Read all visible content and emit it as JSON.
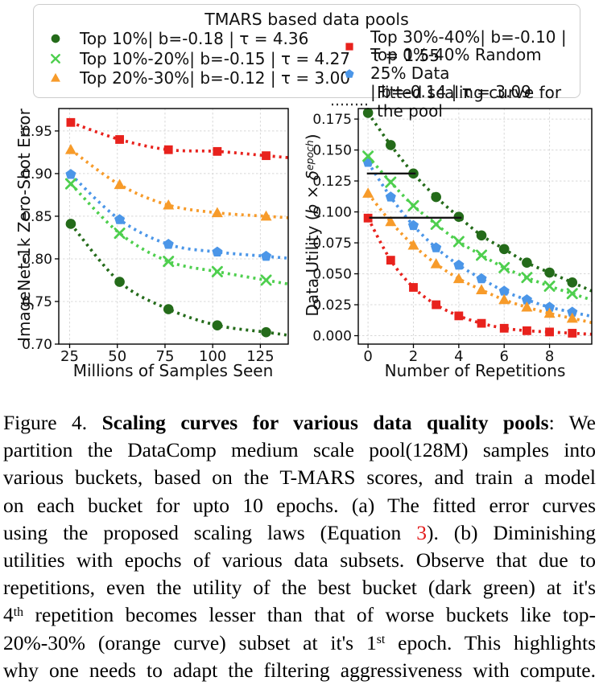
{
  "colors": {
    "dark_green": "#246b1a",
    "light_green": "#4ecf4e",
    "orange": "#f79b2a",
    "red": "#e8221d",
    "blue": "#4b96e8",
    "annotation_black": "#151515",
    "equation_link_red": "#e31b1b"
  },
  "legend": {
    "title": "TMARS based data pools",
    "items": [
      {
        "label": "Top 10%| b=-0.18 | τ = 4.36",
        "marker": "circle",
        "color": "#246b1a"
      },
      {
        "label": "Top 10%-20%| b=-0.15 | τ = 4.27",
        "marker": "x",
        "color": "#4ecf4e"
      },
      {
        "label": "Top 20%-30%| b=-0.12 | τ = 3.00",
        "marker": "triangle",
        "color": "#f79b2a"
      },
      {
        "label": "Top 30%-40%| b=-0.10 | τ = 1.55",
        "marker": "square",
        "color": "#e8221d"
      },
      {
        "label": "Top 0%-40% Random 25% Data\n| b=-0.14 | τ = 3.09",
        "marker": "pentagon",
        "color": "#4b96e8"
      },
      {
        "label": "Fitted scaling curve for the pool",
        "marker": "dotted-line",
        "color": "#333333"
      }
    ]
  },
  "chart_data": [
    {
      "panel": "a",
      "type": "scatter",
      "title": "",
      "xlabel": "Millions of Samples Seen",
      "ylabel": "ImageNet-1k Zero-Shot Error",
      "ylabel_rich": [
        {
          "t": "ImageNet-1k Zero-Shot Error"
        }
      ],
      "xlim": [
        19.3,
        139.6
      ],
      "ylim": [
        0.7,
        0.9763
      ],
      "xticks": [
        25,
        50,
        75,
        100,
        125
      ],
      "yticks": [
        0.7,
        0.75,
        0.8,
        0.85,
        0.9,
        0.95
      ],
      "ytick_decimals": 2,
      "grid": true,
      "x": [
        25.6,
        51.2,
        76.8,
        102.4,
        128
      ],
      "series": [
        {
          "name": "Top 10%",
          "marker": "circle",
          "color": "#246b1a",
          "values": [
            0.841,
            0.773,
            0.741,
            0.722,
            0.714
          ]
        },
        {
          "name": "Top 10%-20%",
          "marker": "x",
          "color": "#4ecf4e",
          "values": [
            0.888,
            0.83,
            0.797,
            0.785,
            0.775
          ]
        },
        {
          "name": "Top 20%-30%",
          "marker": "triangle",
          "color": "#f79b2a",
          "values": [
            0.928,
            0.887,
            0.863,
            0.854,
            0.85
          ]
        },
        {
          "name": "Top 30%-40%",
          "marker": "square",
          "color": "#e8221d",
          "values": [
            0.96,
            0.94,
            0.928,
            0.926,
            0.921
          ]
        },
        {
          "name": "Top 0%-40% Random 25% Data",
          "marker": "pentagon",
          "color": "#4b96e8",
          "values": [
            0.899,
            0.846,
            0.817,
            0.808,
            0.803
          ]
        }
      ]
    },
    {
      "panel": "b",
      "type": "scatter",
      "title": "",
      "xlabel": "Number of Repetitions",
      "ylabel": "Data Utility (b × δ^epoch)",
      "ylabel_rich": [
        {
          "t": "Data Utility ("
        },
        {
          "t": "b",
          "i": true
        },
        {
          "t": " × "
        },
        {
          "t": "δ",
          "i": true
        },
        {
          "t": "epoch",
          "i": true,
          "sup": true
        },
        {
          "t": ")"
        }
      ],
      "xlim": [
        -0.43,
        9.86
      ],
      "ylim": [
        -0.0068,
        0.1835
      ],
      "xticks": [
        0,
        2,
        4,
        6,
        8
      ],
      "yticks": [
        0.0,
        0.025,
        0.05,
        0.075,
        0.1,
        0.125,
        0.15,
        0.175
      ],
      "ytick_decimals": 3,
      "grid": true,
      "x": [
        0,
        1,
        2,
        3,
        4,
        5,
        6,
        7,
        8,
        9
      ],
      "series": [
        {
          "name": "Top 10%",
          "marker": "circle",
          "color": "#246b1a",
          "values": [
            0.18,
            0.154,
            0.131,
            0.112,
            0.096,
            0.081,
            0.07,
            0.059,
            0.051,
            0.043
          ]
        },
        {
          "name": "Top 10%-20%",
          "marker": "x",
          "color": "#4ecf4e",
          "values": [
            0.145,
            0.124,
            0.105,
            0.09,
            0.076,
            0.065,
            0.055,
            0.047,
            0.04,
            0.034
          ]
        },
        {
          "name": "Top 20%-30%",
          "marker": "triangle",
          "color": "#f79b2a",
          "values": [
            0.115,
            0.092,
            0.073,
            0.058,
            0.046,
            0.037,
            0.029,
            0.023,
            0.018,
            0.014
          ]
        },
        {
          "name": "Top 30%-40%",
          "marker": "square",
          "color": "#e8221d",
          "values": [
            0.095,
            0.061,
            0.039,
            0.025,
            0.016,
            0.01,
            0.006,
            0.004,
            0.003,
            0.002
          ]
        },
        {
          "name": "Top 0%-40% Random 25% Data",
          "marker": "pentagon",
          "color": "#4b96e8",
          "values": [
            0.14,
            0.112,
            0.089,
            0.071,
            0.057,
            0.046,
            0.036,
            0.029,
            0.023,
            0.019
          ]
        }
      ],
      "annotations": [
        {
          "x1": -0.05,
          "x2": 2.1,
          "y": 0.131
        },
        {
          "x1": 0.05,
          "x2": 4.12,
          "y": 0.0953
        }
      ]
    }
  ],
  "caption": {
    "lines": [
      [
        {
          "t": "Figure 4.  "
        },
        {
          "t": "Scaling curves for various data quality pools",
          "b": true
        },
        {
          "t": ":  We"
        }
      ],
      [
        {
          "t": "partition the DataComp medium scale pool(128M) samples into"
        }
      ],
      [
        {
          "t": "various buckets, based on the T-MARS scores, and train a model"
        }
      ],
      [
        {
          "t": "on each bucket for upto 10 epochs.  (a) The fitted error curves"
        }
      ],
      [
        {
          "t": "using the proposed scaling laws (Equation "
        },
        {
          "t": "3",
          "color": "#e31b1b",
          "link": true
        },
        {
          "t": ").  (b) Diminishing"
        }
      ],
      [
        {
          "t": "utilities with epochs of various data subsets. Observe that due to"
        }
      ],
      [
        {
          "t": "repetitions, even the utility of the best bucket (dark green) at it's"
        }
      ],
      [
        {
          "t": "4"
        },
        {
          "t": "th",
          "sup": true
        },
        {
          "t": " repetition becomes lesser than that of worse buckets like top-"
        }
      ],
      [
        {
          "t": "20%-30% (orange curve) subset at it's 1"
        },
        {
          "t": "st",
          "sup": true
        },
        {
          "t": " epoch. This highlights"
        }
      ],
      [
        {
          "t": "why one needs to adapt the filtering aggressiveness with compute."
        }
      ]
    ]
  }
}
